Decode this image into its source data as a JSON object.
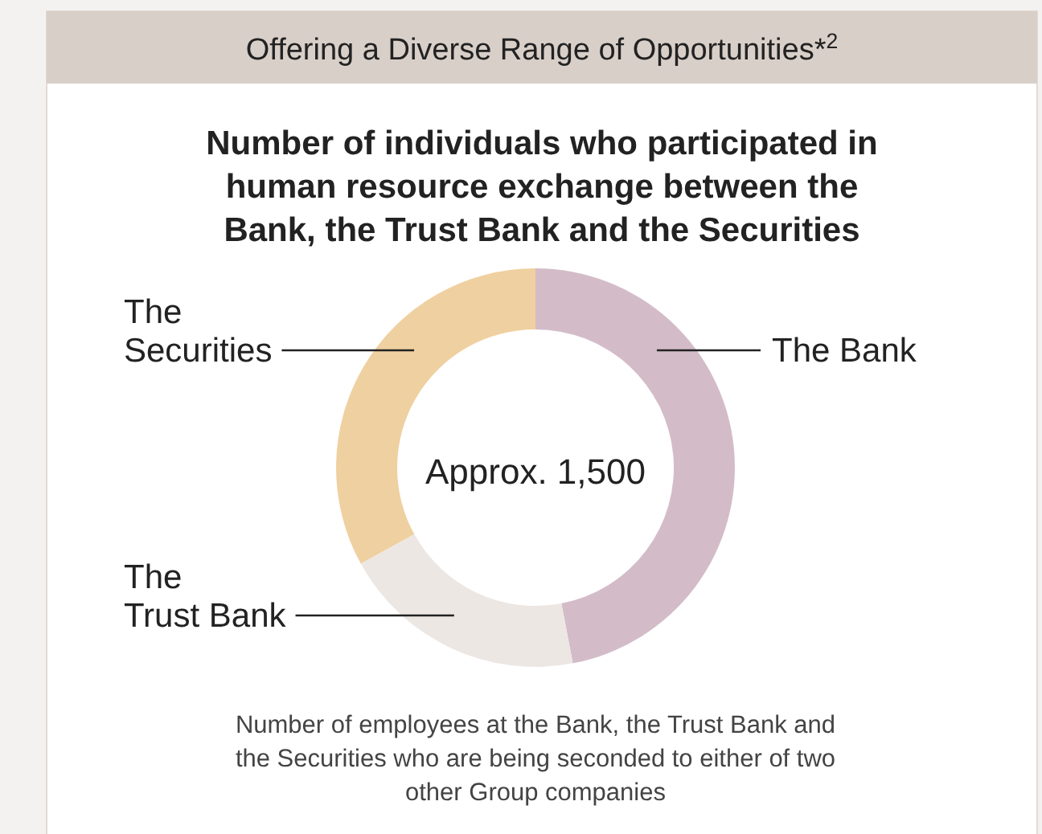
{
  "chart_data": {
    "type": "donut",
    "title": "Offering a Diverse Range of Opportunities*$^{2}$",
    "subtitle": "Number of individuals who participated in human resource exchange between the Bank, the Trust Bank and the Securities",
    "categories": [
      "The Bank",
      "The Trust Bank",
      "The Securities"
    ],
    "values": [
      47,
      20,
      33
    ],
    "colors": [
      "#d3bcc8",
      "#ede7e4",
      "#efd0a0"
    ],
    "annotations": [
      "Approx. 1,500",
      "Number of employees at the Bank, the Trust Bank and the Securities who are being seconded to either of two other Group companies"
    ]
  }
}
